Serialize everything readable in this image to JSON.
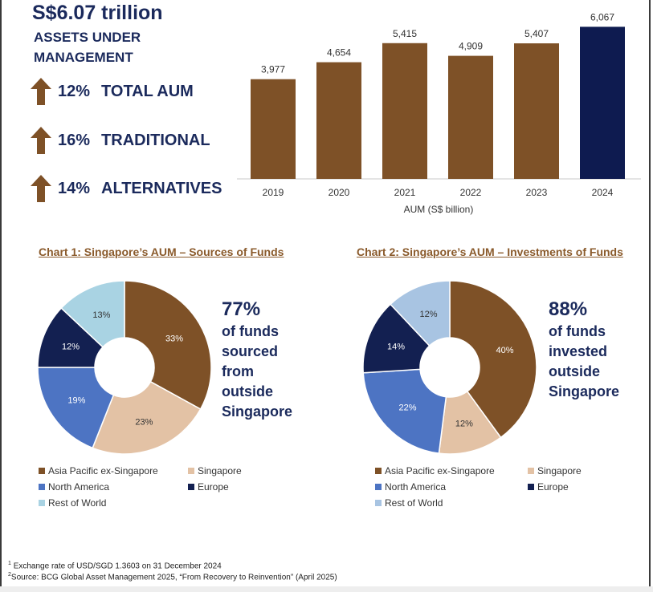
{
  "headline": "S$6.07 trillion",
  "subtitle_line1": "ASSETS UNDER",
  "subtitle_line2": "MANAGEMENT",
  "stats": [
    {
      "pct": "12%",
      "label": "TOTAL AUM"
    },
    {
      "pct": "16%",
      "label": "TRADITIONAL"
    },
    {
      "pct": "14%",
      "label": "ALTERNATIVES"
    }
  ],
  "colors": {
    "brown": "#7e5127",
    "navy": "#0e1b50",
    "text_navy": "#1b2a5c",
    "title_brown": "#8a5a2b",
    "tan": "#e3c2a5",
    "blue": "#4d74c3",
    "dark_navy": "#132051",
    "light_blue_1": "#a9d3e3",
    "light_blue_2": "#a8c4e2"
  },
  "chart_data": [
    {
      "type": "bar",
      "categories": [
        "2019",
        "2020",
        "2021",
        "2022",
        "2023",
        "2024"
      ],
      "values": [
        3977,
        4654,
        5415,
        4909,
        5407,
        6067
      ],
      "value_labels": [
        "3,977",
        "4,654",
        "5,415",
        "4,909",
        "5,407",
        "6,067"
      ],
      "xlabel": "AUM (S$ billion)",
      "ylim": [
        0,
        6400
      ],
      "grid": false,
      "highlight_category": "2024"
    },
    {
      "type": "pie",
      "title": "Chart 1: Singapore’s AUM – Sources of Funds",
      "donut": true,
      "slices": [
        {
          "name": "Asia Pacific ex-Singapore",
          "value": 33,
          "label": "33%"
        },
        {
          "name": "Singapore",
          "value": 23,
          "label": "23%"
        },
        {
          "name": "North America",
          "value": 19,
          "label": "19%"
        },
        {
          "name": "Europe",
          "value": 12,
          "label": "12%"
        },
        {
          "name": "Rest of World",
          "value": 13,
          "label": "13%"
        }
      ],
      "legend_position": "bottom",
      "callout": {
        "big": "77%",
        "lines": [
          "of funds",
          "sourced",
          "from",
          "outside",
          "Singapore"
        ]
      }
    },
    {
      "type": "pie",
      "title": "Chart 2: Singapore’s AUM – Investments of Funds",
      "donut": true,
      "slices": [
        {
          "name": "Asia Pacific ex-Singapore",
          "value": 40,
          "label": "40%"
        },
        {
          "name": "Singapore",
          "value": 12,
          "label": "12%"
        },
        {
          "name": "North America",
          "value": 22,
          "label": "22%"
        },
        {
          "name": "Europe",
          "value": 14,
          "label": "14%"
        },
        {
          "name": "Rest of World",
          "value": 12,
          "label": "12%"
        }
      ],
      "legend_position": "bottom",
      "callout": {
        "big": "88%",
        "lines": [
          "of funds",
          "invested",
          "outside",
          "Singapore"
        ]
      }
    }
  ],
  "footnotes": [
    {
      "mark": "1",
      "text": "Exchange rate of USD/SGD 1.3603 on 31 December 2024"
    },
    {
      "mark": "2",
      "text": "Source: BCG Global Asset Management 2025, “From Recovery to Reinvention” (April 2025)"
    }
  ]
}
